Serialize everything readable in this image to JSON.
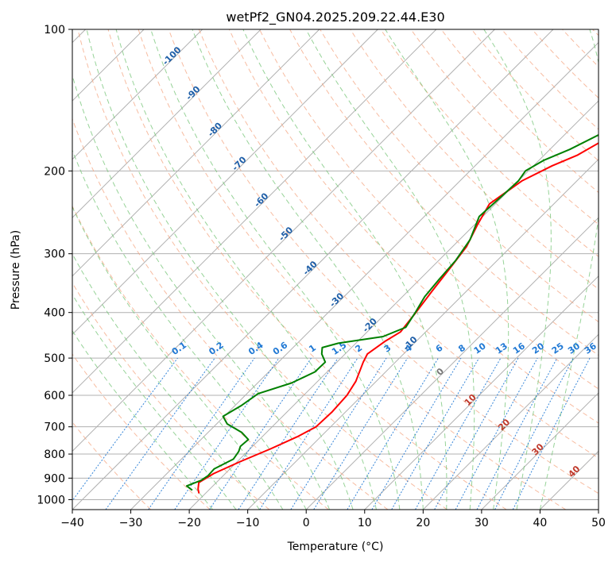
{
  "chart_data": {
    "type": "line",
    "title": "wetPf2_GN04.2025.209.22.44.E30",
    "xlabel": "Temperature (°C)",
    "ylabel": "Pressure (hPa)",
    "xlim": [
      -40,
      50
    ],
    "ylim": [
      1050,
      100
    ],
    "y_scale": "log",
    "x_ticks": [
      -40,
      -30,
      -20,
      -10,
      0,
      10,
      20,
      30,
      40,
      50
    ],
    "y_ticks": [
      100,
      200,
      300,
      400,
      500,
      600,
      700,
      800,
      900,
      1000
    ],
    "x_tick_labels": [
      "−40",
      "−30",
      "−20",
      "−10",
      "0",
      "10",
      "20",
      "30",
      "40",
      "50"
    ],
    "y_tick_labels": [
      "100",
      "200",
      "300",
      "400",
      "500",
      "600",
      "700",
      "800",
      "900",
      "1000"
    ],
    "grid": true,
    "series": [
      {
        "color": "#ff0000",
        "points": [
          [
            -21.1,
            970
          ],
          [
            -22.0,
            950
          ],
          [
            -23.0,
            920
          ],
          [
            -22.0,
            880
          ],
          [
            -19.5,
            830
          ],
          [
            -16.5,
            780
          ],
          [
            -14.0,
            735
          ],
          [
            -12.5,
            700
          ],
          [
            -12.3,
            650
          ],
          [
            -12.6,
            600
          ],
          [
            -13.5,
            560
          ],
          [
            -15.5,
            510
          ],
          [
            -16.2,
            490
          ],
          [
            -15.3,
            460
          ],
          [
            -14.3,
            440
          ],
          [
            -15.0,
            400
          ],
          [
            -15.9,
            360
          ],
          [
            -16.8,
            320
          ],
          [
            -17.6,
            290
          ],
          [
            -19.5,
            260
          ],
          [
            -21.0,
            235
          ],
          [
            -19.4,
            210
          ],
          [
            -16.8,
            195
          ],
          [
            -14.3,
            185
          ],
          [
            -12.1,
            170
          ],
          [
            -9.1,
            155
          ],
          [
            -7.6,
            142
          ],
          [
            -5.2,
            130
          ],
          [
            -3.9,
            120
          ],
          [
            -2.1,
            110
          ],
          [
            -0.6,
            100
          ]
        ]
      },
      {
        "color": "#008000",
        "points": [
          [
            -22.8,
            955
          ],
          [
            -24.5,
            935
          ],
          [
            -23.0,
            910
          ],
          [
            -22.6,
            890
          ],
          [
            -22.7,
            860
          ],
          [
            -21.1,
            820
          ],
          [
            -21.5,
            790
          ],
          [
            -22.1,
            770
          ],
          [
            -21.9,
            745
          ],
          [
            -24.2,
            720
          ],
          [
            -28.2,
            690
          ],
          [
            -30.2,
            665
          ],
          [
            -28.9,
            630
          ],
          [
            -28.1,
            595
          ],
          [
            -24.2,
            565
          ],
          [
            -22.1,
            535
          ],
          [
            -22.0,
            510
          ],
          [
            -24.0,
            490
          ],
          [
            -25.0,
            475
          ],
          [
            -23.0,
            465
          ],
          [
            -16.5,
            450
          ],
          [
            -14.2,
            430
          ],
          [
            -15.1,
            400
          ],
          [
            -16.2,
            370
          ],
          [
            -16.7,
            340
          ],
          [
            -17.1,
            310
          ],
          [
            -18.2,
            280
          ],
          [
            -20.6,
            250
          ],
          [
            -20.2,
            225
          ],
          [
            -20.0,
            210
          ],
          [
            -20.5,
            200
          ],
          [
            -19.2,
            190
          ],
          [
            -16.6,
            180
          ],
          [
            -13.6,
            165
          ],
          [
            -10.1,
            150
          ],
          [
            -8.6,
            135
          ],
          [
            -6.2,
            120
          ],
          [
            -3.3,
            110
          ],
          [
            -1.6,
            100
          ]
        ]
      }
    ],
    "isotherm_labels": [
      "-100",
      "-90",
      "-80",
      "-70",
      "-60",
      "-50",
      "-40",
      "-30",
      "-20",
      "-10",
      "0",
      "10",
      "20",
      "30",
      "40"
    ],
    "mixing_ratio_labels": [
      "0.1",
      "0.2",
      "0.4",
      "0.6",
      "1",
      "1.5",
      "2",
      "3",
      "4",
      "6",
      "8",
      "10",
      "13",
      "16",
      "20",
      "25",
      "30",
      "36"
    ],
    "colors": {
      "grid": "#b0b0b0",
      "dry_adiabat": "#f4a582",
      "moist_adiabat": "#74c476",
      "mixing_ratio": "#1f78d4",
      "isotherm_label_cold": "#1f5fa8",
      "isotherm_label_warm": "#c0392b",
      "isotherm_label_zero": "#777777"
    }
  }
}
